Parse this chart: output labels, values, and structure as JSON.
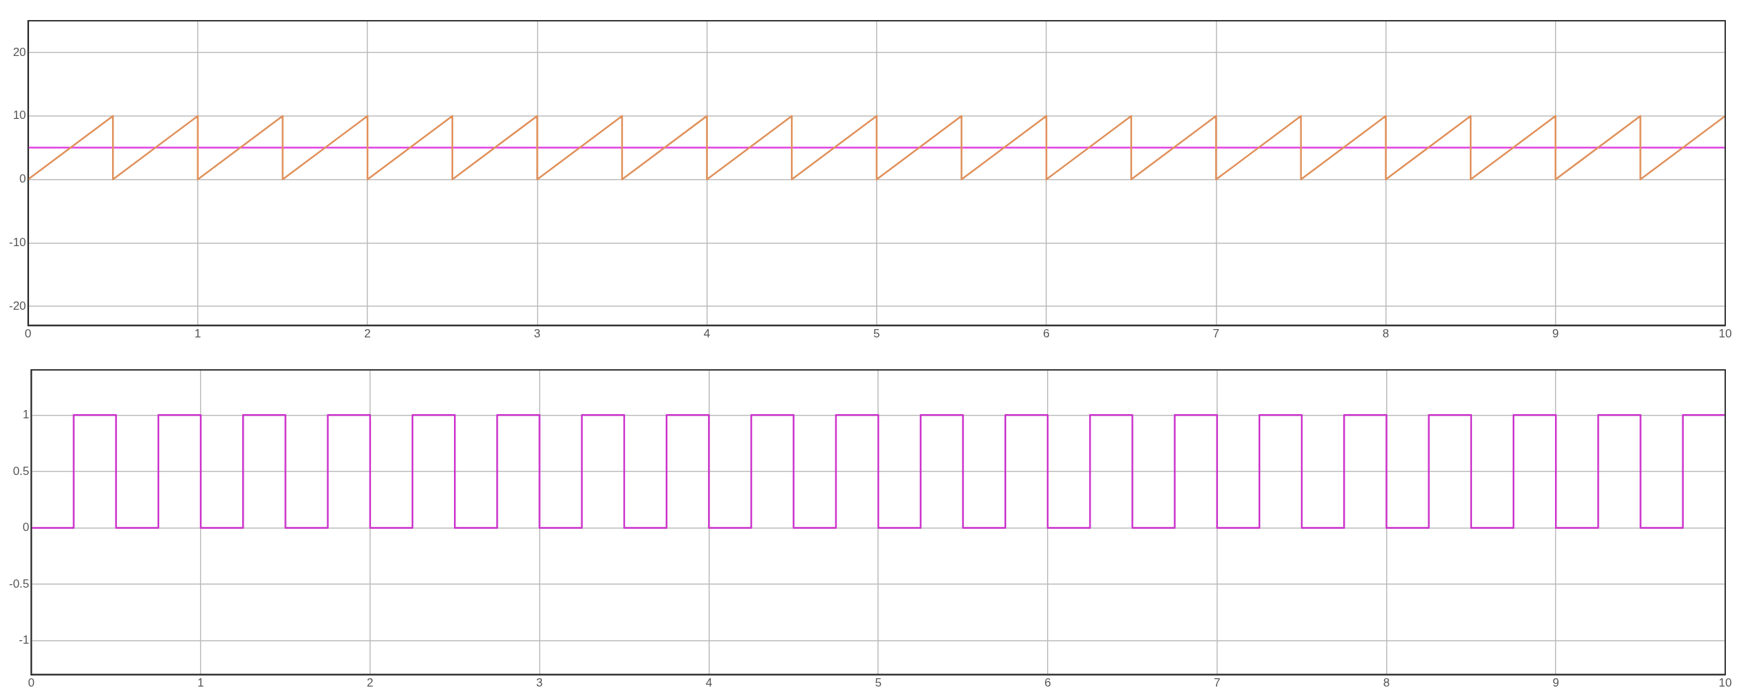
{
  "chart_data": [
    {
      "type": "line",
      "xlim": [
        0,
        10
      ],
      "xticks": [
        0,
        1,
        2,
        3,
        4,
        5,
        6,
        7,
        8,
        9,
        10
      ],
      "ylim": [
        -23,
        25
      ],
      "yticks": [
        -20,
        -10,
        0,
        10,
        20
      ],
      "grid": true,
      "legend": false,
      "marker": "none",
      "line_style": "solid",
      "series": [
        {
          "color": "#e0905a",
          "x": [
            0,
            0.5,
            0.5,
            1,
            1,
            1.5,
            1.5,
            2,
            2,
            2.5,
            2.5,
            3,
            3,
            3.5,
            3.5,
            4,
            4,
            4.5,
            4.5,
            5,
            5,
            5.5,
            5.5,
            6,
            6,
            6.5,
            6.5,
            7,
            7,
            7.5,
            7.5,
            8,
            8,
            8.5,
            8.5,
            9,
            9,
            9.5,
            9.5,
            10
          ],
          "values": [
            0,
            10,
            0,
            10,
            0,
            10,
            0,
            10,
            0,
            10,
            0,
            10,
            0,
            10,
            0,
            10,
            0,
            10,
            0,
            10,
            0,
            10,
            0,
            10,
            0,
            10,
            0,
            10,
            0,
            10,
            0,
            10,
            0,
            10,
            0,
            10,
            0,
            10,
            0,
            10
          ]
        },
        {
          "color": "#e040e0",
          "x": [
            0,
            10
          ],
          "values": [
            5,
            5
          ]
        }
      ]
    },
    {
      "type": "step",
      "xlim": [
        0,
        10
      ],
      "xticks": [
        0,
        1,
        2,
        3,
        4,
        5,
        6,
        7,
        8,
        9,
        10
      ],
      "ylim": [
        -1.3,
        1.4
      ],
      "yticks": [
        -1,
        -0.5,
        0,
        0.5,
        1
      ],
      "grid": true,
      "legend": false,
      "marker": "none",
      "line_style": "solid",
      "series": [
        {
          "color": "#cc33cc",
          "x": [
            0,
            0.25,
            0.5,
            0.75,
            1,
            1.25,
            1.5,
            1.75,
            2,
            2.25,
            2.5,
            2.75,
            3,
            3.25,
            3.5,
            3.75,
            4,
            4.25,
            4.5,
            4.75,
            5,
            5.25,
            5.5,
            5.75,
            6,
            6.25,
            6.5,
            6.75,
            7,
            7.25,
            7.5,
            7.75,
            8,
            8.25,
            8.5,
            8.75,
            9,
            9.25,
            9.5,
            9.75,
            10
          ],
          "values": [
            0,
            1,
            0,
            1,
            0,
            1,
            0,
            1,
            0,
            1,
            0,
            1,
            0,
            1,
            0,
            1,
            0,
            1,
            0,
            1,
            0,
            1,
            0,
            1,
            0,
            1,
            0,
            1,
            0,
            1,
            0,
            1,
            0,
            1,
            0,
            1,
            0,
            1,
            0,
            1,
            1
          ]
        }
      ]
    }
  ]
}
